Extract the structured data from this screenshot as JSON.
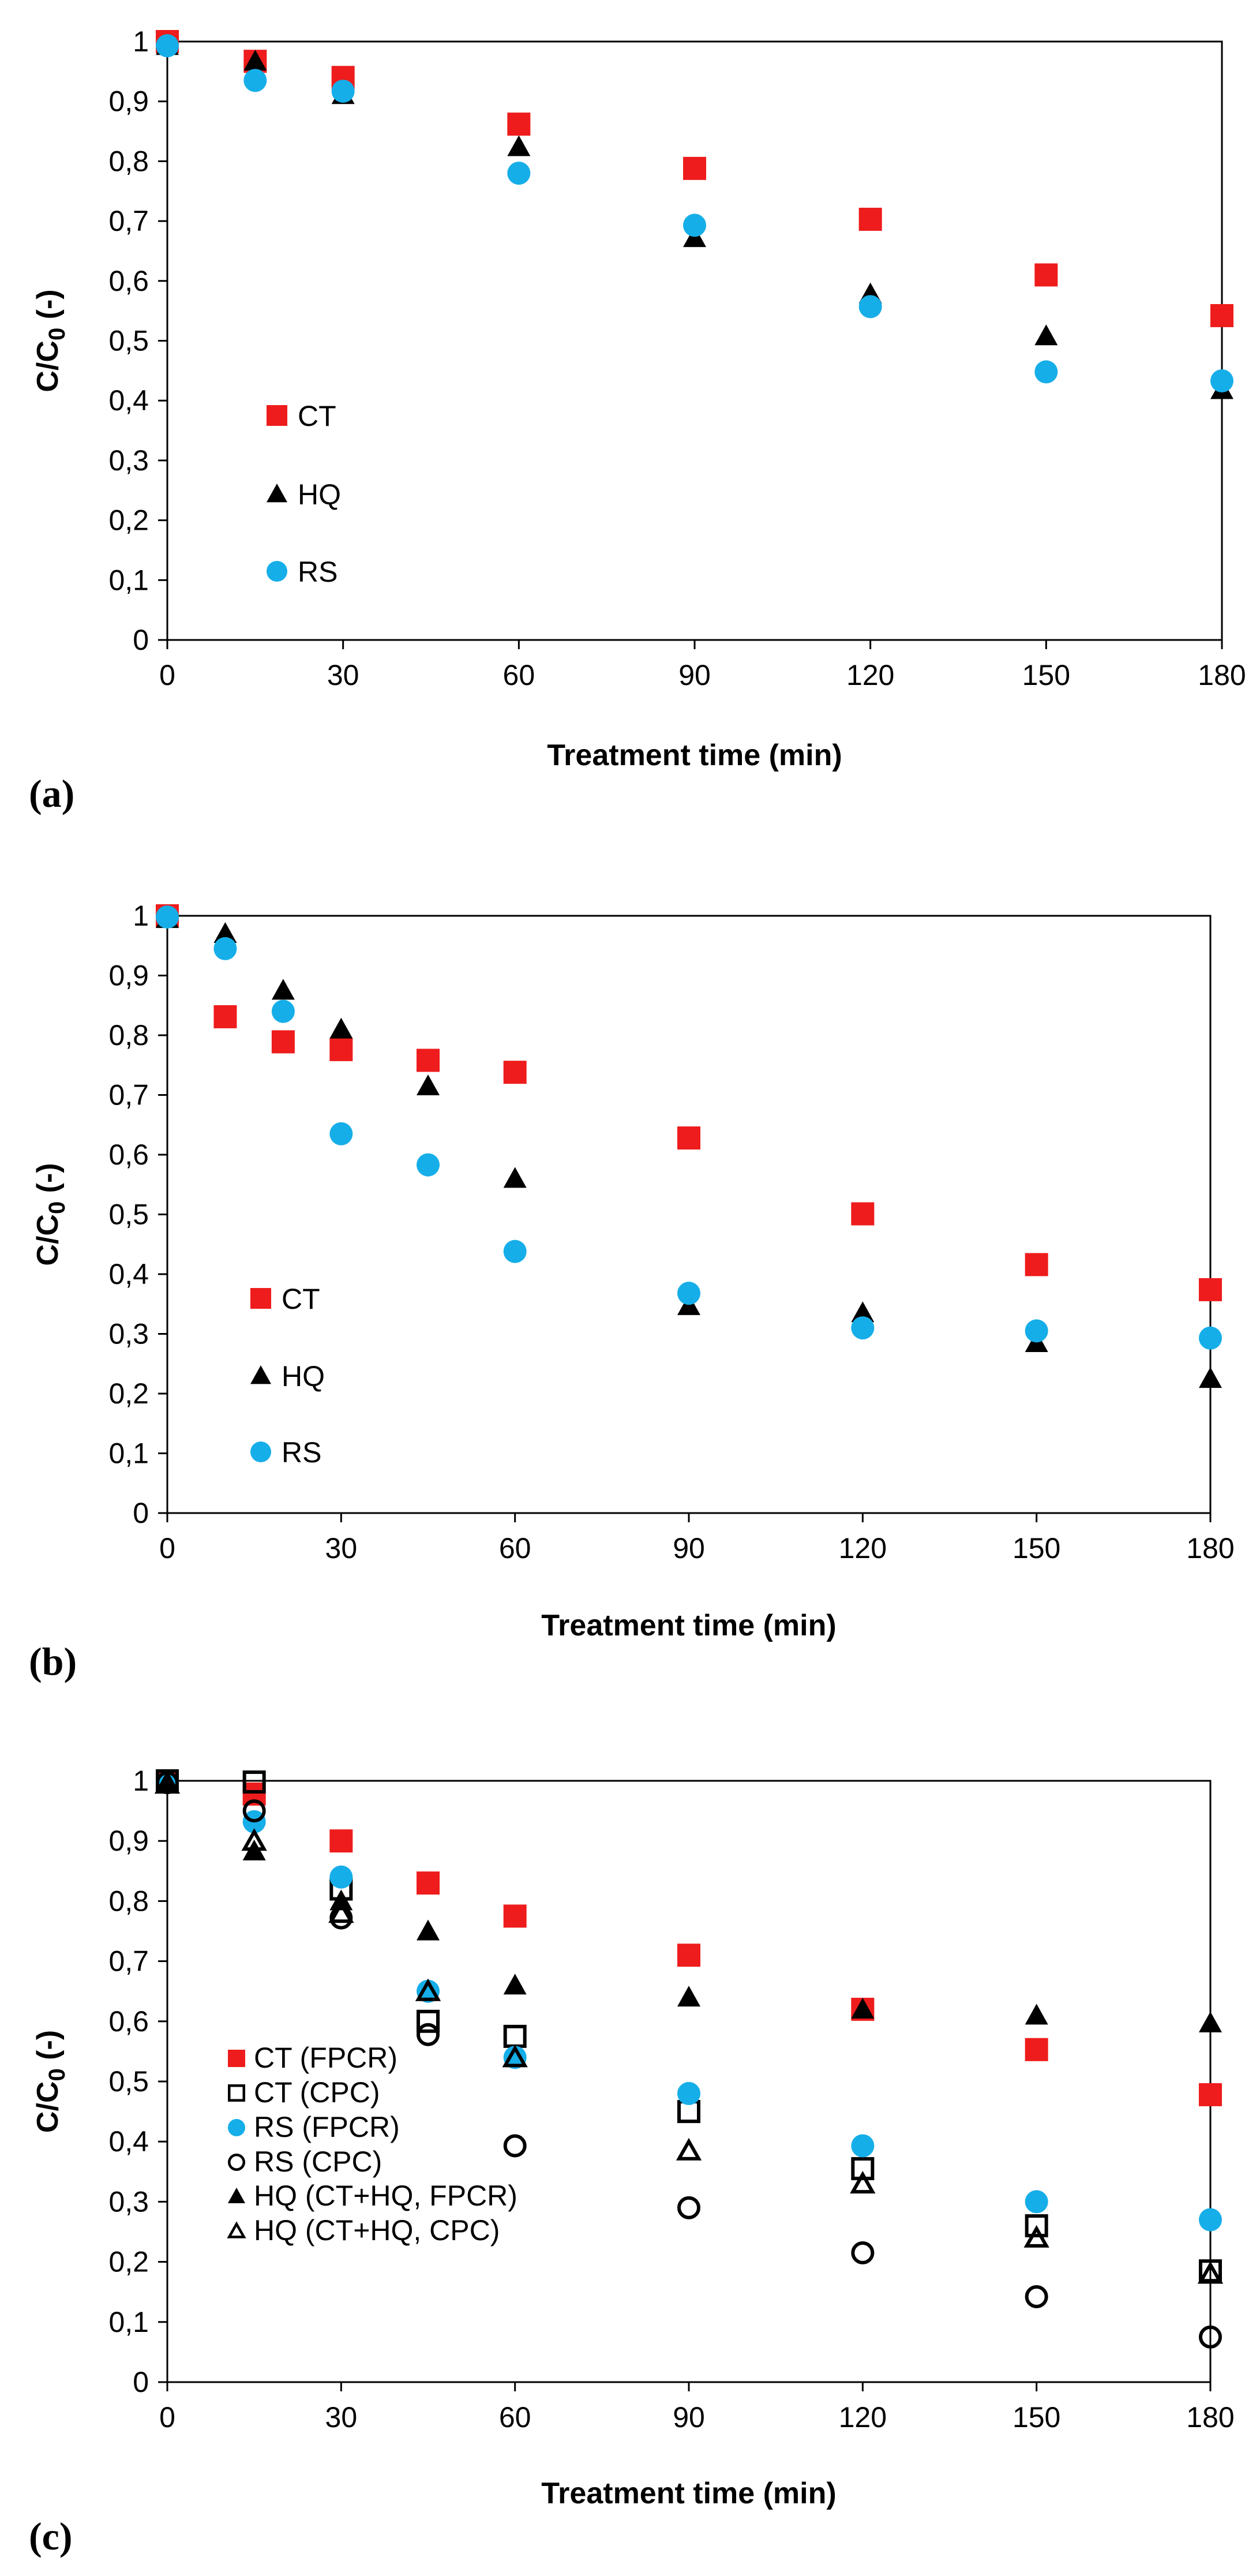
{
  "colors": {
    "red_square": "#ee1c1c",
    "blue_circle": "#16aee8",
    "black": "#000000"
  },
  "chart_data": [
    {
      "type": "scatter",
      "panel_label": "(a)",
      "xlabel": "Treatment time (min)",
      "ylabel": "C/C0 (-)",
      "xlim": [
        0,
        180
      ],
      "ylim": [
        0,
        1
      ],
      "x_ticks": [
        "0",
        "30",
        "60",
        "90",
        "120",
        "150",
        "180"
      ],
      "y_ticks": [
        "0",
        "0,1",
        "0,2",
        "0,3",
        "0,4",
        "0,5",
        "0,6",
        "0,7",
        "0,8",
        "0,9",
        "1"
      ],
      "grid": false,
      "legend_position": "left-middle",
      "series": [
        {
          "name": "CT",
          "marker": "filled-square",
          "color": "#ee1c1c",
          "x": [
            0,
            15,
            30,
            60,
            90,
            120,
            150,
            180
          ],
          "y": [
            1.0,
            0.967,
            0.94,
            0.862,
            0.788,
            0.703,
            0.61,
            0.542
          ]
        },
        {
          "name": "HQ",
          "marker": "filled-triangle",
          "color": "#000000",
          "x": [
            0,
            15,
            30,
            60,
            90,
            120,
            150,
            180
          ],
          "y": [
            0.993,
            0.967,
            0.911,
            0.824,
            0.672,
            0.578,
            0.508,
            0.418
          ]
        },
        {
          "name": "RS",
          "marker": "filled-circle",
          "color": "#16aee8",
          "x": [
            0,
            15,
            30,
            60,
            90,
            120,
            150,
            180
          ],
          "y": [
            0.993,
            0.935,
            0.917,
            0.78,
            0.693,
            0.557,
            0.448,
            0.433
          ]
        }
      ]
    },
    {
      "type": "scatter",
      "panel_label": "(b)",
      "xlabel": "Treatment time (min)",
      "ylabel": "C/C0 (-)",
      "xlim": [
        0,
        180
      ],
      "ylim": [
        0,
        1
      ],
      "x_ticks": [
        "0",
        "30",
        "60",
        "90",
        "120",
        "150",
        "180"
      ],
      "y_ticks": [
        "0",
        "0,1",
        "0,2",
        "0,3",
        "0,4",
        "0,5",
        "0,6",
        "0,7",
        "0,8",
        "0,9",
        "1"
      ],
      "grid": false,
      "legend_position": "left-lower",
      "series": [
        {
          "name": "CT",
          "marker": "filled-square",
          "color": "#ee1c1c",
          "x": [
            0,
            10,
            20,
            30,
            45,
            60,
            90,
            120,
            150,
            180
          ],
          "y": [
            1.0,
            0.831,
            0.789,
            0.776,
            0.758,
            0.738,
            0.628,
            0.501,
            0.416,
            0.374
          ]
        },
        {
          "name": "HQ",
          "marker": "filled-triangle",
          "color": "#000000",
          "x": [
            0,
            10,
            20,
            30,
            45,
            60,
            90,
            120,
            150,
            180
          ],
          "y": [
            0.995,
            0.97,
            0.875,
            0.81,
            0.715,
            0.56,
            0.347,
            0.335,
            0.285,
            0.225
          ]
        },
        {
          "name": "RS",
          "marker": "filled-circle",
          "color": "#16aee8",
          "x": [
            0,
            10,
            20,
            30,
            45,
            60,
            90,
            120,
            150,
            180
          ],
          "y": [
            0.998,
            0.945,
            0.84,
            0.635,
            0.583,
            0.438,
            0.368,
            0.31,
            0.305,
            0.293
          ]
        }
      ]
    },
    {
      "type": "scatter",
      "panel_label": "(c)",
      "xlabel": "Treatment time (min)",
      "ylabel": "C/C0 (-)",
      "xlim": [
        0,
        180
      ],
      "ylim": [
        0,
        1
      ],
      "x_ticks": [
        "0",
        "30",
        "60",
        "90",
        "120",
        "150",
        "180"
      ],
      "y_ticks": [
        "0",
        "0,1",
        "0,2",
        "0,3",
        "0,4",
        "0,5",
        "0,6",
        "0,7",
        "0,8",
        "0,9",
        "1"
      ],
      "grid": false,
      "legend_position": "bottom-left",
      "series": [
        {
          "name": "CT (FPCR)",
          "marker": "filled-square",
          "color": "#ee1c1c",
          "x": [
            0,
            15,
            30,
            45,
            60,
            90,
            120,
            150,
            180
          ],
          "y": [
            1.0,
            0.978,
            0.9,
            0.83,
            0.775,
            0.71,
            0.62,
            0.553,
            0.478
          ]
        },
        {
          "name": "CT (CPC)",
          "marker": "open-square",
          "color": "#000000",
          "x": [
            0,
            15,
            30,
            45,
            60,
            90,
            120,
            150,
            180
          ],
          "y": [
            1.0,
            0.998,
            0.82,
            0.6,
            0.575,
            0.45,
            0.355,
            0.26,
            0.185
          ]
        },
        {
          "name": "RS (FPCR)",
          "marker": "filled-circle",
          "color": "#16aee8",
          "x": [
            0,
            15,
            30,
            45,
            60,
            90,
            120,
            150,
            180
          ],
          "y": [
            0.997,
            0.932,
            0.84,
            0.65,
            0.54,
            0.48,
            0.393,
            0.3,
            0.27
          ]
        },
        {
          "name": "RS (CPC)",
          "marker": "open-circle",
          "color": "#000000",
          "x": [
            0,
            15,
            30,
            45,
            60,
            90,
            120,
            150,
            180
          ],
          "y": [
            0.997,
            0.95,
            0.772,
            0.578,
            0.393,
            0.29,
            0.215,
            0.142,
            0.075
          ]
        },
        {
          "name": "HQ (CT+HQ, FPCR)",
          "marker": "filled-triangle",
          "color": "#000000",
          "x": [
            0,
            15,
            30,
            45,
            60,
            90,
            120,
            150,
            180
          ],
          "y": [
            0.998,
            0.883,
            0.8,
            0.75,
            0.66,
            0.64,
            0.62,
            0.61,
            0.597
          ]
        },
        {
          "name": "HQ (CT+HQ, CPC)",
          "marker": "open-triangle",
          "color": "#000000",
          "x": [
            0,
            15,
            30,
            45,
            60,
            90,
            120,
            150,
            180
          ],
          "y": [
            0.995,
            0.9,
            0.78,
            0.65,
            0.54,
            0.385,
            0.33,
            0.24,
            0.18
          ]
        }
      ]
    }
  ]
}
